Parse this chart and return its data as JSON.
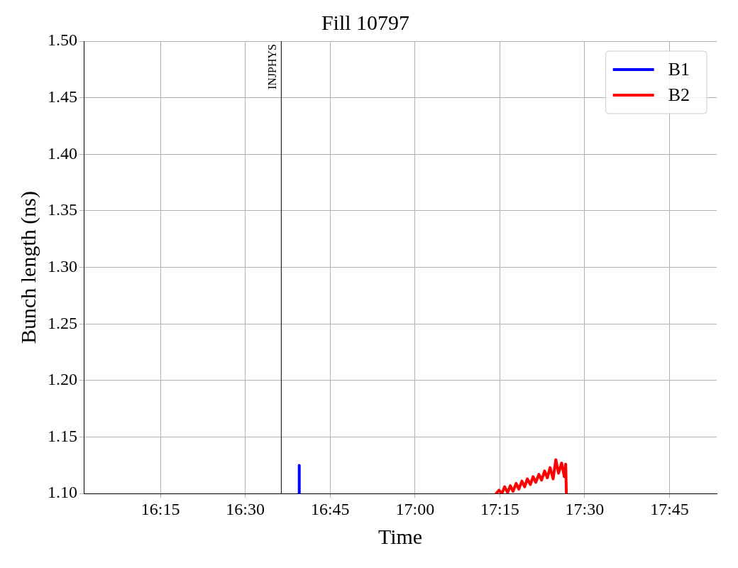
{
  "chart_data": {
    "type": "line",
    "title": "Fill 10797",
    "xlabel": "Time",
    "ylabel": "Bunch length (ns)",
    "xlim": [
      16.024,
      17.889
    ],
    "xticks": [
      {
        "value": 16.25,
        "label": "16:15"
      },
      {
        "value": 16.5,
        "label": "16:30"
      },
      {
        "value": 16.75,
        "label": "16:45"
      },
      {
        "value": 17,
        "label": "17:00"
      },
      {
        "value": 17.25,
        "label": "17:15"
      },
      {
        "value": 17.5,
        "label": "17:30"
      },
      {
        "value": 17.75,
        "label": "17:45"
      }
    ],
    "ylim": [
      1.1,
      1.5
    ],
    "yticks": [
      {
        "value": 1.1,
        "label": "1.10"
      },
      {
        "value": 1.15,
        "label": "1.15"
      },
      {
        "value": 1.2,
        "label": "1.20"
      },
      {
        "value": 1.25,
        "label": "1.25"
      },
      {
        "value": 1.3,
        "label": "1.30"
      },
      {
        "value": 1.35,
        "label": "1.35"
      },
      {
        "value": 1.4,
        "label": "1.40"
      },
      {
        "value": 1.45,
        "label": "1.45"
      },
      {
        "value": 1.5,
        "label": "1.50"
      }
    ],
    "grid": true,
    "legend": "top right",
    "marker": "none",
    "line_style": "solid",
    "ref_lines": [
      {
        "axis": "x",
        "value": 16.606,
        "label": "INJPHYS",
        "color": "#000000"
      }
    ],
    "series": [
      {
        "name": "B1",
        "color": "#0000ff",
        "x": [
          16.658,
          16.659
        ],
        "values": [
          1.1,
          1.125
        ]
      },
      {
        "name": "B2",
        "color": "#ff0000",
        "x": [
          17.239,
          17.2475,
          17.256,
          17.264,
          17.273,
          17.281,
          17.289,
          17.298,
          17.306,
          17.315,
          17.323,
          17.331,
          17.34,
          17.348,
          17.356,
          17.365,
          17.373,
          17.382,
          17.39,
          17.398,
          17.407,
          17.415,
          17.423,
          17.432,
          17.44,
          17.444,
          17.446
        ],
        "values": [
          1.1,
          1.103,
          1.1,
          1.106,
          1.101,
          1.107,
          1.102,
          1.109,
          1.104,
          1.111,
          1.106,
          1.113,
          1.108,
          1.115,
          1.11,
          1.117,
          1.112,
          1.12,
          1.114,
          1.123,
          1.113,
          1.13,
          1.118,
          1.127,
          1.115,
          1.126,
          1.1
        ]
      }
    ]
  }
}
